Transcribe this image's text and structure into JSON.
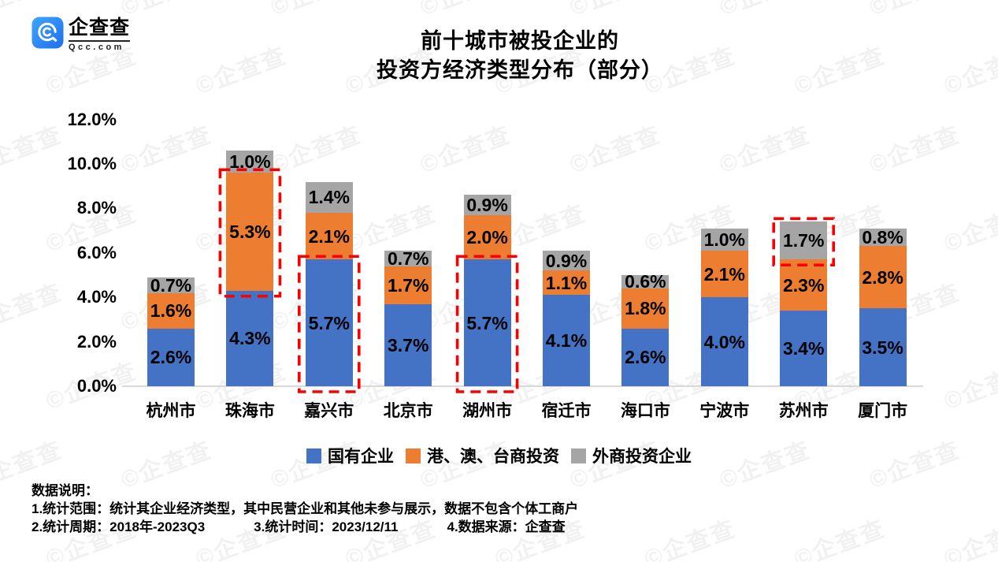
{
  "branding": {
    "logo_text": "企查查",
    "logo_subtext": "Qcc.com",
    "brand_blue": "#2b8df5",
    "watermark_text": "©企查查"
  },
  "title": {
    "line1": "前十城市被投企业的",
    "line2": "投资方经济类型分布（部分）"
  },
  "chart_data": {
    "type": "bar",
    "subtype": "stacked",
    "categories": [
      "杭州市",
      "珠海市",
      "嘉兴市",
      "北京市",
      "湖州市",
      "宿迁市",
      "海口市",
      "宁波市",
      "苏州市",
      "厦门市"
    ],
    "series": [
      {
        "name": "国有企业",
        "color": "#4472C4",
        "values": [
          2.6,
          4.3,
          5.7,
          3.7,
          5.7,
          4.1,
          2.6,
          4.0,
          3.4,
          3.5
        ]
      },
      {
        "name": "港、澳、台商投资",
        "color": "#ED7D31",
        "values": [
          1.6,
          5.3,
          2.1,
          1.7,
          2.0,
          1.1,
          1.8,
          2.1,
          2.3,
          2.8
        ]
      },
      {
        "name": "外商投资企业",
        "color": "#A5A5A5",
        "values": [
          0.7,
          1.0,
          1.4,
          0.7,
          0.9,
          0.9,
          0.6,
          1.0,
          1.7,
          0.8
        ]
      }
    ],
    "value_suffix": "%",
    "y_axis": {
      "min": 0,
      "max": 12,
      "step": 2,
      "ticks": [
        "0.0%",
        "2.0%",
        "4.0%",
        "6.0%",
        "8.0%",
        "10.0%",
        "12.0%"
      ]
    },
    "grid": false,
    "legend_position": "bottom",
    "highlights": [
      {
        "category": "珠海市",
        "series": "港、澳、台商投资"
      },
      {
        "category": "嘉兴市",
        "series": "国有企业"
      },
      {
        "category": "湖州市",
        "series": "国有企业"
      },
      {
        "category": "苏州市",
        "series": "外商投资企业"
      }
    ],
    "highlight_color": "#FA0000"
  },
  "footnote": {
    "heading": "数据说明：",
    "line1": "1.统计范围：统计其企业经济类型，其中民营企业和其他未参与展示，数据不包含个体工商户",
    "line2_items": [
      "2.统计周期：2018年-2023Q3",
      "3.统计时间：2023/12/11",
      "4.数据来源：企查查"
    ]
  }
}
